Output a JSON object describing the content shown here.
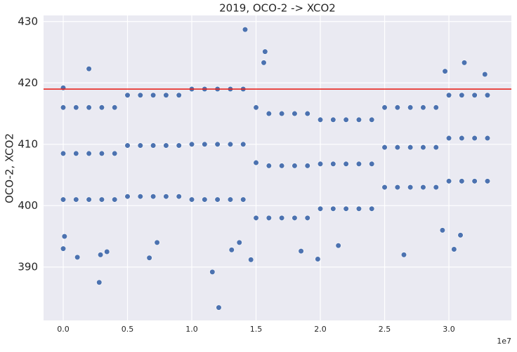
{
  "chart_data": {
    "type": "scatter",
    "title": "2019, OCO-2 -> XCO2",
    "ylabel": "OCO-2, XCO2",
    "x_scale_label": "1e7",
    "xlim": [
      -0.153,
      3.486
    ],
    "ylim": [
      381.3,
      431.0
    ],
    "xticks": [
      {
        "value": 0,
        "label": "0.0"
      },
      0.5,
      {
        "value": 1,
        "label": "1.0"
      },
      1.5,
      {
        "value": 2,
        "label": "2.0"
      },
      2.5,
      {
        "value": 3,
        "label": "3.0"
      }
    ],
    "yticks": [
      390,
      400,
      410,
      420,
      430
    ],
    "grid": true,
    "hline": {
      "value": 419,
      "color": "#e8251f"
    },
    "series": [
      {
        "color": "#4c72b0",
        "x": [
          0,
          0.1,
          0.2,
          0.3,
          0.4,
          0.5,
          0.6,
          0.7,
          0.8,
          0.9,
          1,
          1.1,
          1.2,
          1.3,
          1.4,
          1.5,
          1.6,
          1.7,
          1.8,
          1.9,
          2,
          2.1,
          2.2,
          2.3,
          2.4,
          2.5,
          2.6,
          2.7,
          2.8,
          2.9,
          3,
          3.1,
          3.2,
          3.3,
          0,
          0.1,
          0.2,
          0.3,
          0.4,
          0.5,
          0.6,
          0.7,
          0.8,
          0.9,
          1,
          1.1,
          1.2,
          1.3,
          1.4,
          1.5,
          1.6,
          1.7,
          1.8,
          1.9,
          2,
          2.1,
          2.2,
          2.3,
          2.4,
          2.5,
          2.6,
          2.7,
          2.8,
          2.9,
          3,
          3.1,
          3.2,
          3.3,
          0,
          0.1,
          0.2,
          0.3,
          0.4,
          0.5,
          0.6,
          0.7,
          0.8,
          0.9,
          1,
          1.1,
          1.2,
          1.3,
          1.4,
          1.5,
          1.6,
          1.7,
          1.8,
          1.9,
          2,
          2.1,
          2.2,
          2.3,
          2.4,
          2.5,
          2.6,
          2.7,
          2.8,
          2.9,
          3,
          3.1,
          3.2,
          3.3,
          0,
          0,
          0.01,
          0.11,
          0.2,
          0.28,
          0.29,
          0.34,
          0.67,
          0.73,
          1.415,
          1.57,
          1.16,
          1.21,
          1.31,
          1.37,
          1.46,
          1.56,
          1.85,
          1.98,
          2.14,
          2.65,
          2.97,
          3.04,
          3.12,
          3.28,
          3.09,
          2.95
        ],
        "y": [
          416,
          416,
          416,
          416,
          416,
          418,
          418,
          418,
          418,
          418,
          419,
          419,
          419,
          419,
          419,
          416,
          415,
          415,
          415,
          415,
          414,
          414,
          414,
          414,
          414,
          416,
          416,
          416,
          416,
          416,
          418,
          418,
          418,
          418,
          408.5,
          408.5,
          408.5,
          408.5,
          408.5,
          409.8,
          409.8,
          409.8,
          409.8,
          409.8,
          410,
          410,
          410,
          410,
          410,
          407,
          406.5,
          406.5,
          406.5,
          406.5,
          406.8,
          406.8,
          406.8,
          406.8,
          406.8,
          409.5,
          409.5,
          409.5,
          409.5,
          409.5,
          411,
          411,
          411,
          411,
          401,
          401,
          401,
          401,
          401,
          401.5,
          401.5,
          401.5,
          401.5,
          401.5,
          401,
          401,
          401,
          401,
          401,
          398,
          398,
          398,
          398,
          398,
          399.5,
          399.5,
          399.5,
          399.5,
          399.5,
          403,
          403,
          403,
          403,
          403,
          404,
          404,
          404,
          404,
          393,
          419.2,
          395,
          391.6,
          422.3,
          387.5,
          392,
          392.5,
          391.5,
          394,
          428.7,
          425.1,
          389.2,
          383.4,
          392.8,
          394,
          391.2,
          423.3,
          392.6,
          391.3,
          393.5,
          392,
          421.9,
          392.9,
          423.3,
          421.4,
          395.2,
          396
        ]
      }
    ]
  }
}
